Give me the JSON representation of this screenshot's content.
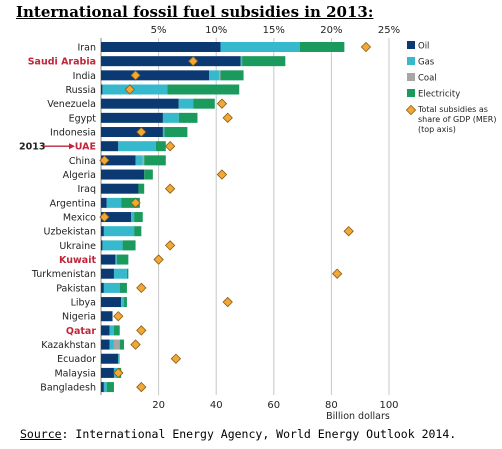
{
  "title": "International fossil fuel subsidies in 2013:",
  "source": {
    "label": "Source",
    "text": ": International Energy Agency, World Energy Outlook 2014."
  },
  "chart_data": {
    "type": "bar",
    "orientation": "horizontal",
    "stacked": true,
    "categories": [
      "Iran",
      "Saudi Arabia",
      "India",
      "Russia",
      "Venezuela",
      "Egypt",
      "Indonesia",
      "UAE",
      "China",
      "Algeria",
      "Iraq",
      "Argentina",
      "Mexico",
      "Uzbekistan",
      "Ukraine",
      "Kuwait",
      "Turkmenistan",
      "Pakistan",
      "Libya",
      "Nigeria",
      "Qatar",
      "Kazakhstan",
      "Ecuador",
      "Malaysia",
      "Bangladesh"
    ],
    "highlighted_categories": [
      "Saudi Arabia",
      "UAE",
      "Kuwait",
      "Qatar"
    ],
    "highlight_color": "#c0263a",
    "series": [
      {
        "name": "Oil",
        "color": "#0b3a72",
        "values": [
          41.5,
          48.5,
          37.5,
          0.5,
          27,
          21.5,
          21.5,
          6,
          12,
          15,
          13,
          2,
          10.5,
          1,
          0.5,
          5,
          4.5,
          1,
          7,
          4,
          3,
          3,
          6,
          4.5,
          1
        ]
      },
      {
        "name": "Gas",
        "color": "#36b9cd",
        "values": [
          27.5,
          0.5,
          3.5,
          22.5,
          5,
          5.5,
          0.5,
          13,
          2.5,
          0,
          0,
          5,
          1,
          10.5,
          7,
          0.5,
          4.5,
          5.5,
          1,
          0,
          1.5,
          1.5,
          0.5,
          1.5,
          1
        ]
      },
      {
        "name": "Coal",
        "color": "#a6a6a6",
        "values": [
          0,
          0,
          0.5,
          0,
          0,
          0,
          0,
          0,
          0.5,
          0,
          0,
          0,
          0,
          0,
          0,
          0,
          0,
          0,
          0,
          0,
          0,
          2,
          0,
          0,
          0
        ]
      },
      {
        "name": "Electricity",
        "color": "#1a9a5c",
        "values": [
          15.5,
          15,
          8,
          25,
          7.5,
          6.5,
          8,
          3.5,
          7.5,
          3,
          2,
          6.5,
          3,
          2.5,
          4.5,
          4,
          0.5,
          2.5,
          1,
          0,
          2,
          1.5,
          0,
          1,
          2.5
        ]
      }
    ],
    "subsidy_share_of_gdp": {
      "name": "Total subsidies as share of GDP (MER) (top axis)",
      "unit": "%",
      "values": [
        23,
        8,
        3,
        2.5,
        10.5,
        11,
        3.5,
        6,
        0.3,
        10.5,
        6,
        3,
        0.3,
        21.5,
        6,
        5,
        20.5,
        3.5,
        11,
        1.5,
        3.5,
        3,
        6.5,
        1.5,
        3.5
      ]
    },
    "xlabel": "Billion dollars",
    "xlim": [
      0,
      100
    ],
    "x_ticks": [
      20,
      40,
      60,
      80,
      100
    ],
    "top_axis_ticks": [
      "5%",
      "10%",
      "15%",
      "20%",
      "25%"
    ],
    "top_axis_range": [
      0,
      25
    ],
    "year_marker": {
      "label": "2013",
      "category": "UAE"
    },
    "legend_position": "right",
    "grid": "vertical"
  }
}
